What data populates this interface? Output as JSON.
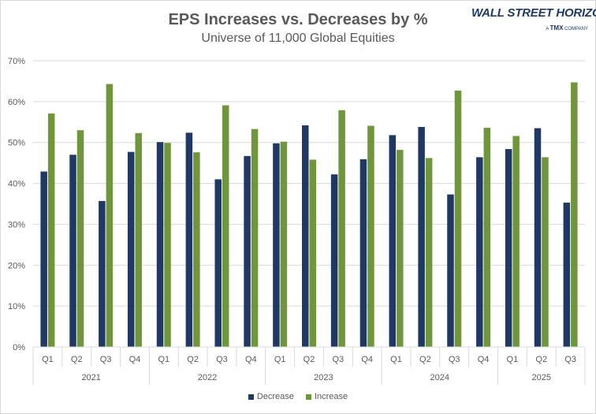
{
  "logo": {
    "main": "WALL STREET HORIZON",
    "sub_prefix": "A",
    "sub_brand": "TMX",
    "sub_suffix": "COMPANY"
  },
  "colors": {
    "decrease": "#203864",
    "increase": "#70963c",
    "grid": "#d9d9d9",
    "text": "#595959"
  },
  "chart_data": {
    "type": "bar",
    "title": "EPS Increases vs. Decreases by %",
    "subtitle": "Universe of 11,000 Global Equities",
    "categories": [
      "Q1",
      "Q2",
      "Q3",
      "Q4",
      "Q1",
      "Q2",
      "Q3",
      "Q4",
      "Q1",
      "Q2",
      "Q3",
      "Q4",
      "Q1",
      "Q2",
      "Q3",
      "Q4",
      "Q1",
      "Q2",
      "Q3"
    ],
    "groups": [
      {
        "label": "2021",
        "count": 4
      },
      {
        "label": "2022",
        "count": 4
      },
      {
        "label": "2023",
        "count": 4
      },
      {
        "label": "2024",
        "count": 4
      },
      {
        "label": "2025",
        "count": 3
      }
    ],
    "series": [
      {
        "name": "Decrease",
        "values": [
          42.9,
          47.0,
          35.7,
          47.7,
          50.1,
          52.4,
          41.0,
          46.7,
          49.8,
          54.2,
          42.2,
          45.9,
          51.8,
          53.8,
          37.3,
          46.4,
          48.4,
          53.5,
          35.3
        ]
      },
      {
        "name": "Increase",
        "values": [
          57.1,
          53.0,
          64.3,
          52.3,
          49.9,
          47.6,
          59.1,
          53.3,
          50.2,
          45.8,
          57.9,
          54.1,
          48.2,
          46.2,
          62.7,
          53.6,
          51.6,
          46.4,
          64.7
        ]
      }
    ],
    "y_ticks": [
      "0%",
      "10%",
      "20%",
      "30%",
      "40%",
      "50%",
      "60%",
      "70%"
    ],
    "ylim": [
      0,
      70
    ],
    "grid": true,
    "legend_position": "bottom"
  }
}
